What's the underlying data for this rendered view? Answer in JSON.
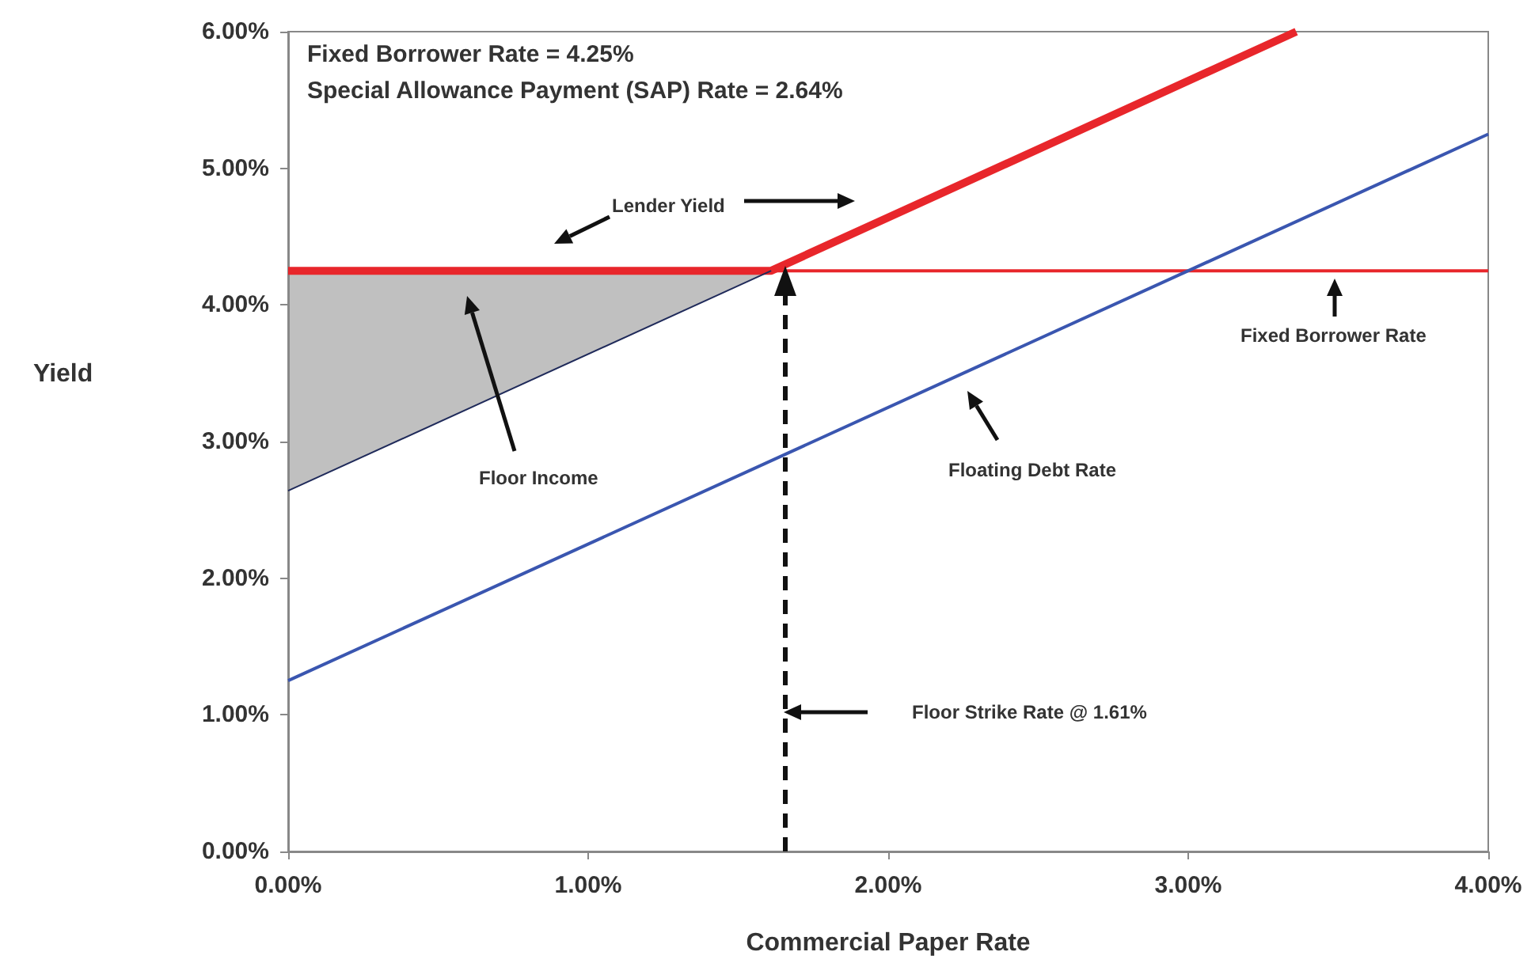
{
  "chart_data": {
    "type": "line",
    "xlabel": "Commercial Paper Rate",
    "ylabel": "Yield",
    "xlim": [
      0,
      4
    ],
    "ylim": [
      0,
      6
    ],
    "xticks": [
      {
        "value": 0,
        "label": "0.00%"
      },
      {
        "value": 1,
        "label": "1.00%"
      },
      {
        "value": 2,
        "label": "2.00%"
      },
      {
        "value": 3,
        "label": "3.00%"
      },
      {
        "value": 4,
        "label": "4.00%"
      }
    ],
    "yticks": [
      {
        "value": 0,
        "label": "0.00%"
      },
      {
        "value": 1,
        "label": "1.00%"
      },
      {
        "value": 2,
        "label": "2.00%"
      },
      {
        "value": 3,
        "label": "3.00%"
      },
      {
        "value": 4,
        "label": "4.00%"
      },
      {
        "value": 5,
        "label": "5.00%"
      },
      {
        "value": 6,
        "label": "6.00%"
      }
    ],
    "grid": false,
    "marker": "none",
    "series": [
      {
        "color": "#e8262b",
        "x": [
          0,
          1.61,
          3.36
        ],
        "values": [
          4.25,
          4.25,
          6.0
        ]
      },
      {
        "color": "#e8262b",
        "x": [
          0,
          4
        ],
        "values": [
          4.25,
          4.25
        ]
      },
      {
        "color": "#1f2a5a",
        "x": [
          0,
          1.61
        ],
        "values": [
          2.64,
          4.25
        ],
        "lower": [
          2.64,
          4.25
        ],
        "upper": [
          4.25,
          4.25
        ]
      },
      {
        "color": "#3a56b0",
        "x": [
          0,
          4
        ],
        "values": [
          1.25,
          5.25
        ]
      }
    ],
    "annotations": [
      "Fixed Borrower Rate = 4.25%",
      "Special Allowance Payment (SAP) Rate = 2.64%",
      "Lender Yield",
      "Floor Income",
      "Floating Debt Rate",
      "Fixed Borrower Rate",
      "Floor Strike Rate @ 1.61%"
    ]
  }
}
